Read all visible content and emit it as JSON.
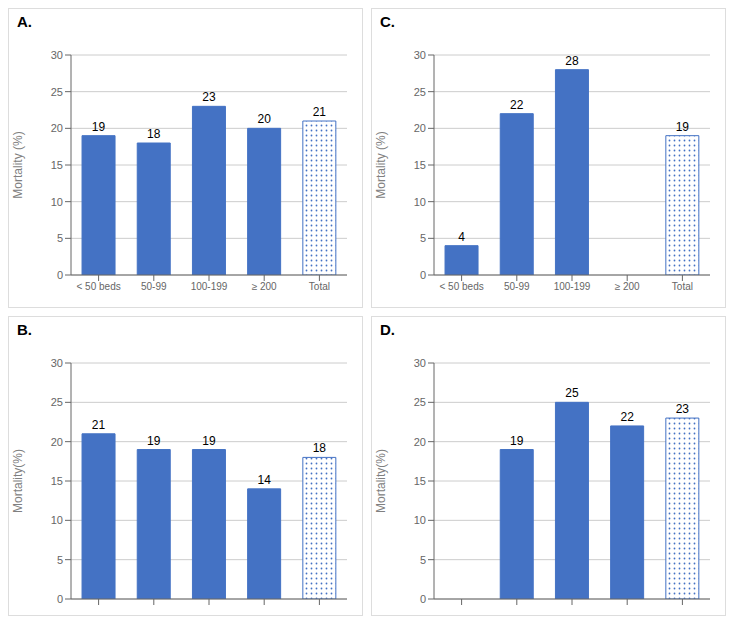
{
  "chart_data": [
    {
      "type": "bar",
      "title": "A.",
      "categories": [
        "< 50 beds",
        "50-99",
        "100-199",
        "≥ 200",
        "Total"
      ],
      "values": [
        19,
        18,
        23,
        20,
        21
      ],
      "color": "#4472C4",
      "colors": [
        "#4472C4",
        "#4472C4",
        "#4472C4",
        "#4472C4",
        "#ffffff"
      ],
      "ylabel": "Mortality (%)",
      "ylim": [
        0,
        30
      ],
      "yticks": [
        0,
        5,
        10,
        15,
        20,
        25,
        30
      ],
      "grid": true,
      "data_labels": true
    },
    {
      "type": "bar",
      "title": "C.",
      "categories": [
        "< 50 beds",
        "50-99",
        "100-199",
        "≥ 200",
        "Total"
      ],
      "values": [
        4,
        22,
        28,
        0,
        19
      ],
      "color": "#4472C4",
      "colors": [
        "#4472C4",
        "#4472C4",
        "#4472C4",
        "#4472C4",
        "#ffffff"
      ],
      "ylabel": "Mortality (%)",
      "ylim": [
        0,
        30
      ],
      "yticks": [
        0,
        5,
        10,
        15,
        20,
        25,
        30
      ],
      "grid": true,
      "data_labels": true
    },
    {
      "type": "bar",
      "title": "B.",
      "categories": [
        null,
        null,
        null,
        null,
        null
      ],
      "values": [
        21,
        19,
        19,
        14,
        18
      ],
      "color": "#4472C4",
      "colors": [
        "#4472C4",
        "#4472C4",
        "#4472C4",
        "#4472C4",
        "#ffffff"
      ],
      "ylabel": "Mortality(%)",
      "ylim": [
        0,
        30
      ],
      "yticks": [
        0,
        5,
        10,
        15,
        20,
        25,
        30
      ],
      "grid": true,
      "data_labels": true
    },
    {
      "type": "bar",
      "title": "D.",
      "categories": [
        null,
        null,
        null,
        null,
        null
      ],
      "values": [
        0,
        19,
        25,
        22,
        23
      ],
      "color": "#4472C4",
      "colors": [
        "#4472C4",
        "#4472C4",
        "#4472C4",
        "#4472C4",
        "#ffffff"
      ],
      "ylabel": "Mortality(%)",
      "ylim": [
        0,
        30
      ],
      "yticks": [
        0,
        5,
        10,
        15,
        20,
        25,
        30
      ],
      "grid": true,
      "data_labels": true
    }
  ]
}
